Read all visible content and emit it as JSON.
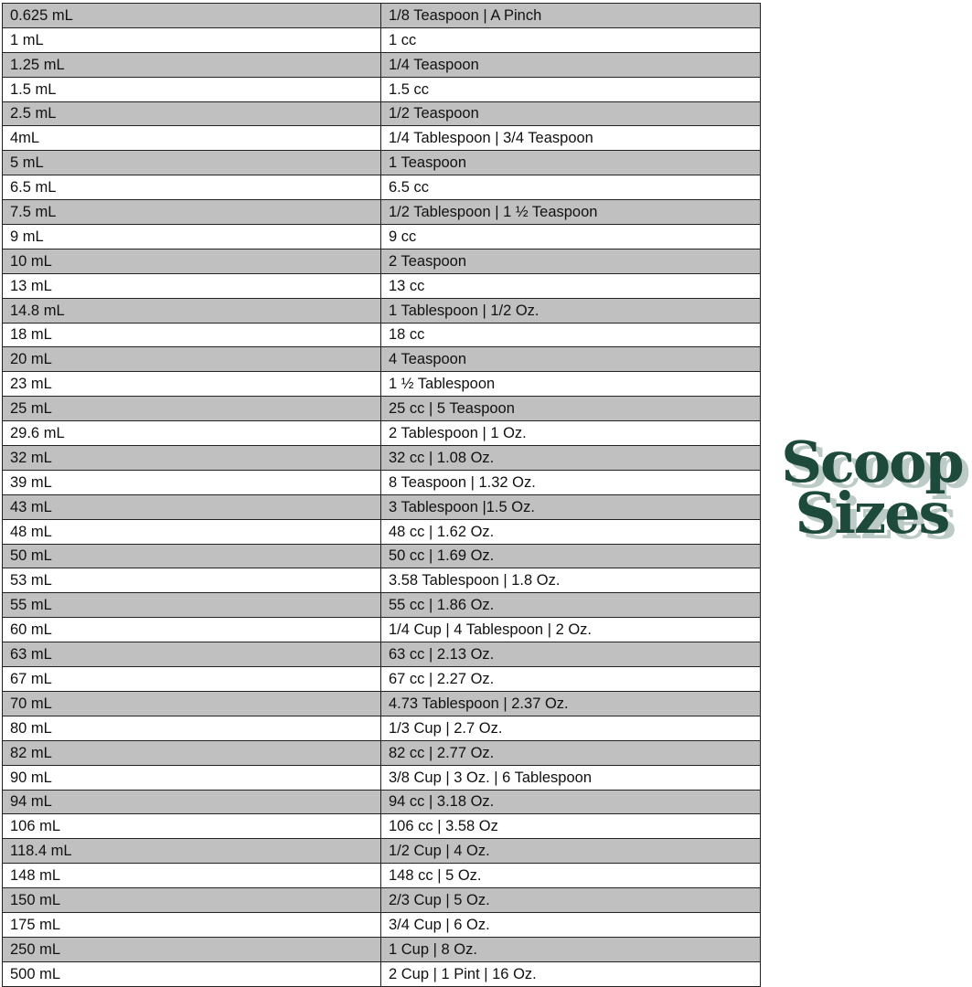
{
  "logo": {
    "line1": "Scoop",
    "line2": "Sizes",
    "text_color": "#1e4a3c",
    "shadow_color": "#bccbc7"
  },
  "table": {
    "stripe_color": "#c0c0c0",
    "rows": [
      [
        "0.625 mL",
        "1/8 Teaspoon | A Pinch"
      ],
      [
        "1 mL",
        "1 cc"
      ],
      [
        "1.25 mL",
        "1/4 Teaspoon"
      ],
      [
        "1.5 mL",
        "1.5 cc"
      ],
      [
        "2.5 mL",
        "1/2 Teaspoon"
      ],
      [
        "4mL",
        "1/4 Tablespoon | 3/4 Teaspoon"
      ],
      [
        "5 mL",
        "1 Teaspoon"
      ],
      [
        "6.5 mL",
        "6.5 cc"
      ],
      [
        "7.5 mL",
        "1/2 Tablespoon | 1 ½ Teaspoon"
      ],
      [
        "9 mL",
        "9 cc"
      ],
      [
        "10 mL",
        "2 Teaspoon"
      ],
      [
        "13 mL",
        "13 cc"
      ],
      [
        "14.8 mL",
        "1 Tablespoon | 1/2 Oz."
      ],
      [
        "18 mL",
        "18 cc"
      ],
      [
        "20 mL",
        "4 Teaspoon"
      ],
      [
        "23 mL",
        "1 ½ Tablespoon"
      ],
      [
        "25 mL",
        "25 cc | 5 Teaspoon"
      ],
      [
        "29.6 mL",
        "2 Tablespoon | 1 Oz."
      ],
      [
        "32 mL",
        "32 cc | 1.08 Oz."
      ],
      [
        "39 mL",
        "8 Teaspoon | 1.32 Oz."
      ],
      [
        "43 mL",
        "3 Tablespoon |1.5 Oz."
      ],
      [
        "48 mL",
        "48 cc | 1.62 Oz."
      ],
      [
        "50 mL",
        "50 cc | 1.69 Oz."
      ],
      [
        "53 mL",
        "3.58 Tablespoon | 1.8 Oz."
      ],
      [
        "55 mL",
        "55 cc | 1.86 Oz."
      ],
      [
        "60 mL",
        "1/4 Cup | 4 Tablespoon | 2 Oz."
      ],
      [
        "63 mL",
        "63 cc | 2.13 Oz."
      ],
      [
        "67 mL",
        "67 cc | 2.27 Oz."
      ],
      [
        "70 mL",
        "4.73 Tablespoon | 2.37 Oz."
      ],
      [
        "80 mL",
        "1/3 Cup | 2.7 Oz."
      ],
      [
        "82 mL",
        "82 cc | 2.77 Oz."
      ],
      [
        "90 mL",
        "3/8 Cup | 3 Oz. | 6 Tablespoon"
      ],
      [
        "94 mL",
        "94 cc | 3.18 Oz."
      ],
      [
        "106 mL",
        "106 cc | 3.58 Oz"
      ],
      [
        "118.4 mL",
        "1/2 Cup | 4 Oz."
      ],
      [
        "148 mL",
        "148 cc | 5 Oz."
      ],
      [
        "150 mL",
        "2/3 Cup | 5 Oz."
      ],
      [
        "175 mL",
        "3/4 Cup | 6 Oz."
      ],
      [
        "250 mL",
        "1 Cup | 8 Oz."
      ],
      [
        "500 mL",
        "2 Cup | 1 Pint | 16 Oz."
      ]
    ]
  }
}
